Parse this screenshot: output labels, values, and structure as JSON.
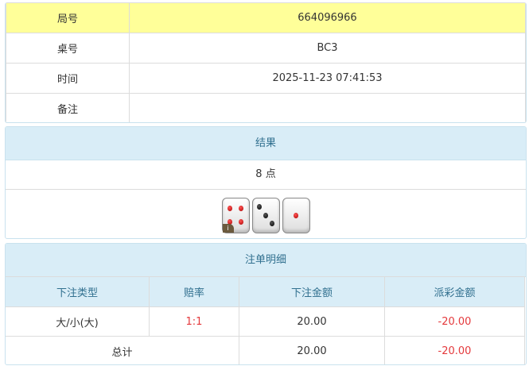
{
  "info": {
    "rows": [
      {
        "label": "局号",
        "value": "664096966"
      },
      {
        "label": "桌号",
        "value": "BC3"
      },
      {
        "label": "时间",
        "value": "2025-11-23 07:41:53"
      },
      {
        "label": "备注",
        "value": ""
      }
    ]
  },
  "result": {
    "title": "结果",
    "points": "8 点",
    "dice": [
      4,
      3,
      1
    ],
    "info_badge": "i"
  },
  "bets": {
    "title": "注单明细",
    "headers": [
      "下注类型",
      "赔率",
      "下注金额",
      "派彩金额"
    ],
    "rows": [
      {
        "type": "大/小(大)",
        "odds": "1:1",
        "amount": "20.00",
        "payout": "-20.00"
      }
    ],
    "total": {
      "label": "总计",
      "amount": "20.00",
      "payout": "-20.00"
    }
  },
  "colors": {
    "highlight": "#ffff99",
    "header": "#d9edf7",
    "negative": "#e4393c"
  }
}
